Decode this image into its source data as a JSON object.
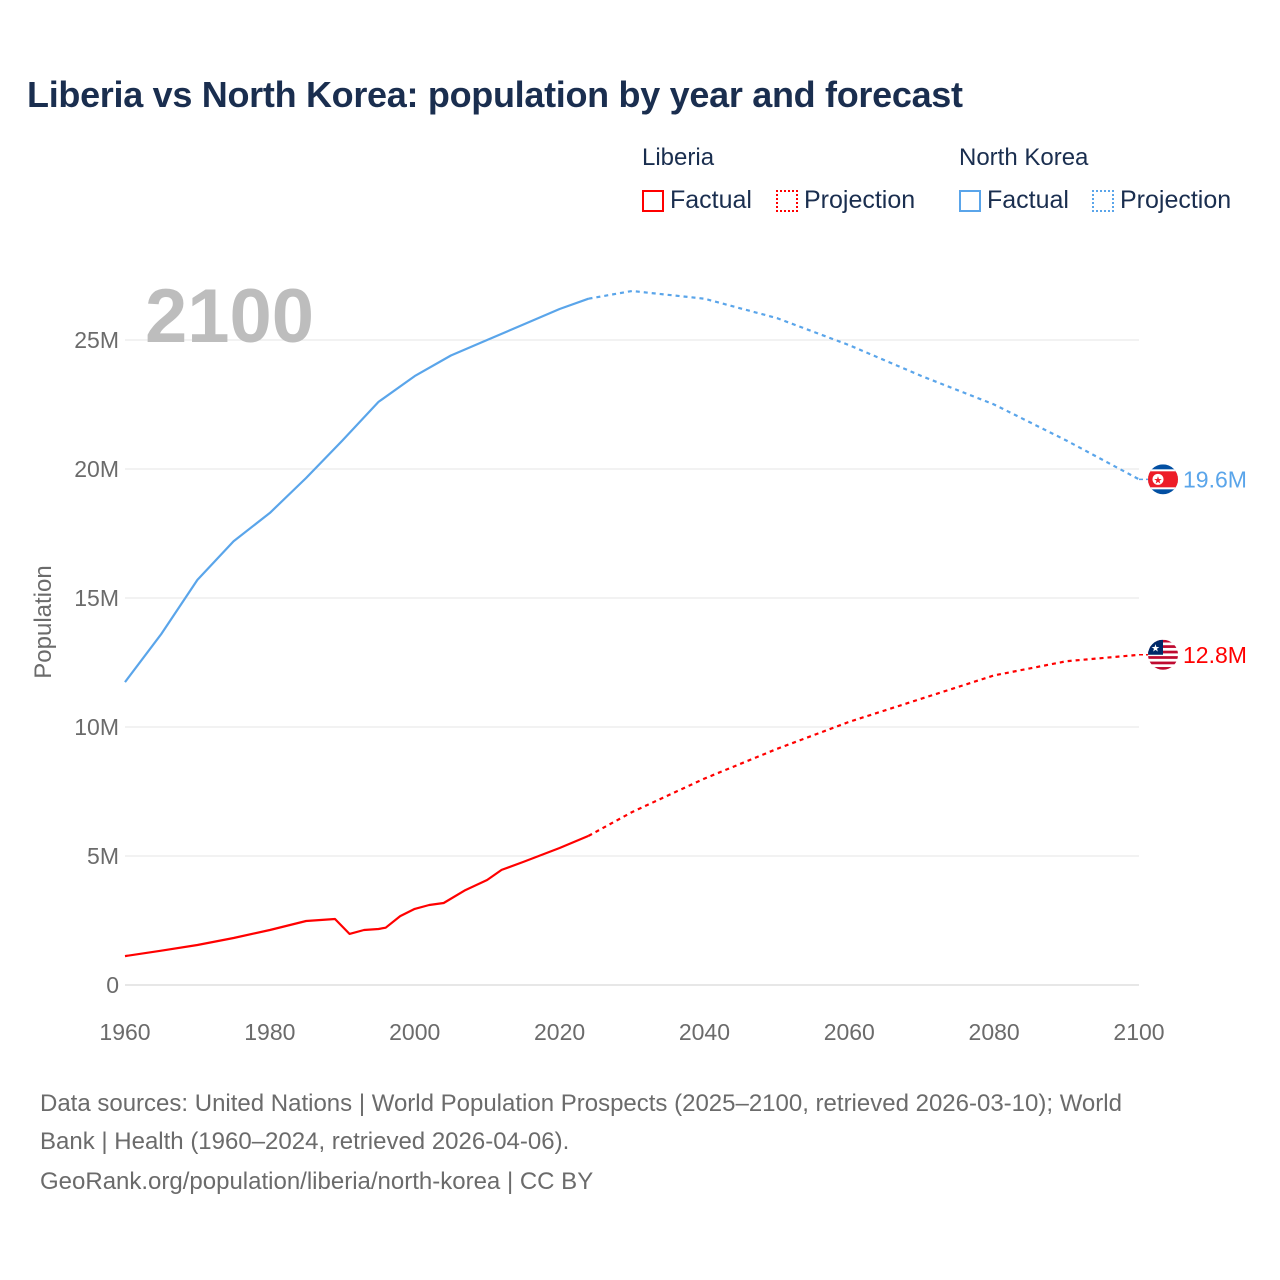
{
  "title": "Liberia vs North Korea: population by year and forecast",
  "legend": {
    "groups": [
      {
        "name": "Liberia",
        "factual": "Factual",
        "projection": "Projection",
        "color": "#ff0000"
      },
      {
        "name": "North Korea",
        "factual": "Factual",
        "projection": "Projection",
        "color": "#5aa5ea"
      }
    ]
  },
  "year_label": "2100",
  "footer": {
    "line1": "Data sources: United Nations | World Population Prospects (2025–2100, retrieved 2026-03-10); World",
    "line2": "Bank | Health (1960–2024, retrieved 2026-04-06).",
    "line3": "GeoRank.org/population/liberia/north-korea | CC BY"
  },
  "chart_data": {
    "type": "line",
    "title": "Liberia vs North Korea: population by year and forecast",
    "xlabel": "",
    "ylabel": "Population",
    "xlim": [
      1960,
      2100
    ],
    "ylim": [
      0,
      27
    ],
    "x_ticks": [
      1960,
      1980,
      2000,
      2020,
      2040,
      2060,
      2080,
      2100
    ],
    "y_ticks": [
      {
        "v": 0,
        "label": "0"
      },
      {
        "v": 5,
        "label": "5M"
      },
      {
        "v": 10,
        "label": "10M"
      },
      {
        "v": 15,
        "label": "15M"
      },
      {
        "v": 20,
        "label": "20M"
      },
      {
        "v": 25,
        "label": "25M"
      }
    ],
    "grid": true,
    "legend_position": "top-right",
    "series": [
      {
        "name": "North Korea",
        "color": "#5aa5ea",
        "end_label": "19.6M",
        "flag": "north-korea",
        "factual": [
          [
            1960,
            11.74
          ],
          [
            1965,
            13.6
          ],
          [
            1970,
            15.7
          ],
          [
            1975,
            17.2
          ],
          [
            1980,
            18.3
          ],
          [
            1985,
            19.65
          ],
          [
            1990,
            21.1
          ],
          [
            1995,
            22.6
          ],
          [
            2000,
            23.6
          ],
          [
            2005,
            24.4
          ],
          [
            2010,
            25.0
          ],
          [
            2015,
            25.6
          ],
          [
            2020,
            26.2
          ],
          [
            2024,
            26.6
          ]
        ],
        "projection": [
          [
            2024,
            26.6
          ],
          [
            2030,
            26.9
          ],
          [
            2040,
            26.6
          ],
          [
            2050,
            25.85
          ],
          [
            2060,
            24.8
          ],
          [
            2070,
            23.6
          ],
          [
            2080,
            22.5
          ],
          [
            2090,
            21.1
          ],
          [
            2100,
            19.6
          ]
        ]
      },
      {
        "name": "Liberia",
        "color": "#ff0000",
        "end_label": "12.8M",
        "flag": "liberia",
        "factual": [
          [
            1960,
            1.12
          ],
          [
            1965,
            1.33
          ],
          [
            1970,
            1.55
          ],
          [
            1975,
            1.82
          ],
          [
            1980,
            2.13
          ],
          [
            1985,
            2.48
          ],
          [
            1989,
            2.56
          ],
          [
            1991,
            1.98
          ],
          [
            1993,
            2.13
          ],
          [
            1995,
            2.17
          ],
          [
            1996,
            2.22
          ],
          [
            1998,
            2.67
          ],
          [
            2000,
            2.95
          ],
          [
            2002,
            3.1
          ],
          [
            2004,
            3.18
          ],
          [
            2007,
            3.68
          ],
          [
            2010,
            4.07
          ],
          [
            2012,
            4.46
          ],
          [
            2015,
            4.77
          ],
          [
            2020,
            5.31
          ],
          [
            2024,
            5.78
          ]
        ],
        "projection": [
          [
            2024,
            5.78
          ],
          [
            2030,
            6.7
          ],
          [
            2040,
            8.0
          ],
          [
            2050,
            9.15
          ],
          [
            2060,
            10.2
          ],
          [
            2070,
            11.1
          ],
          [
            2080,
            12.0
          ],
          [
            2090,
            12.55
          ],
          [
            2100,
            12.8
          ]
        ]
      }
    ]
  }
}
